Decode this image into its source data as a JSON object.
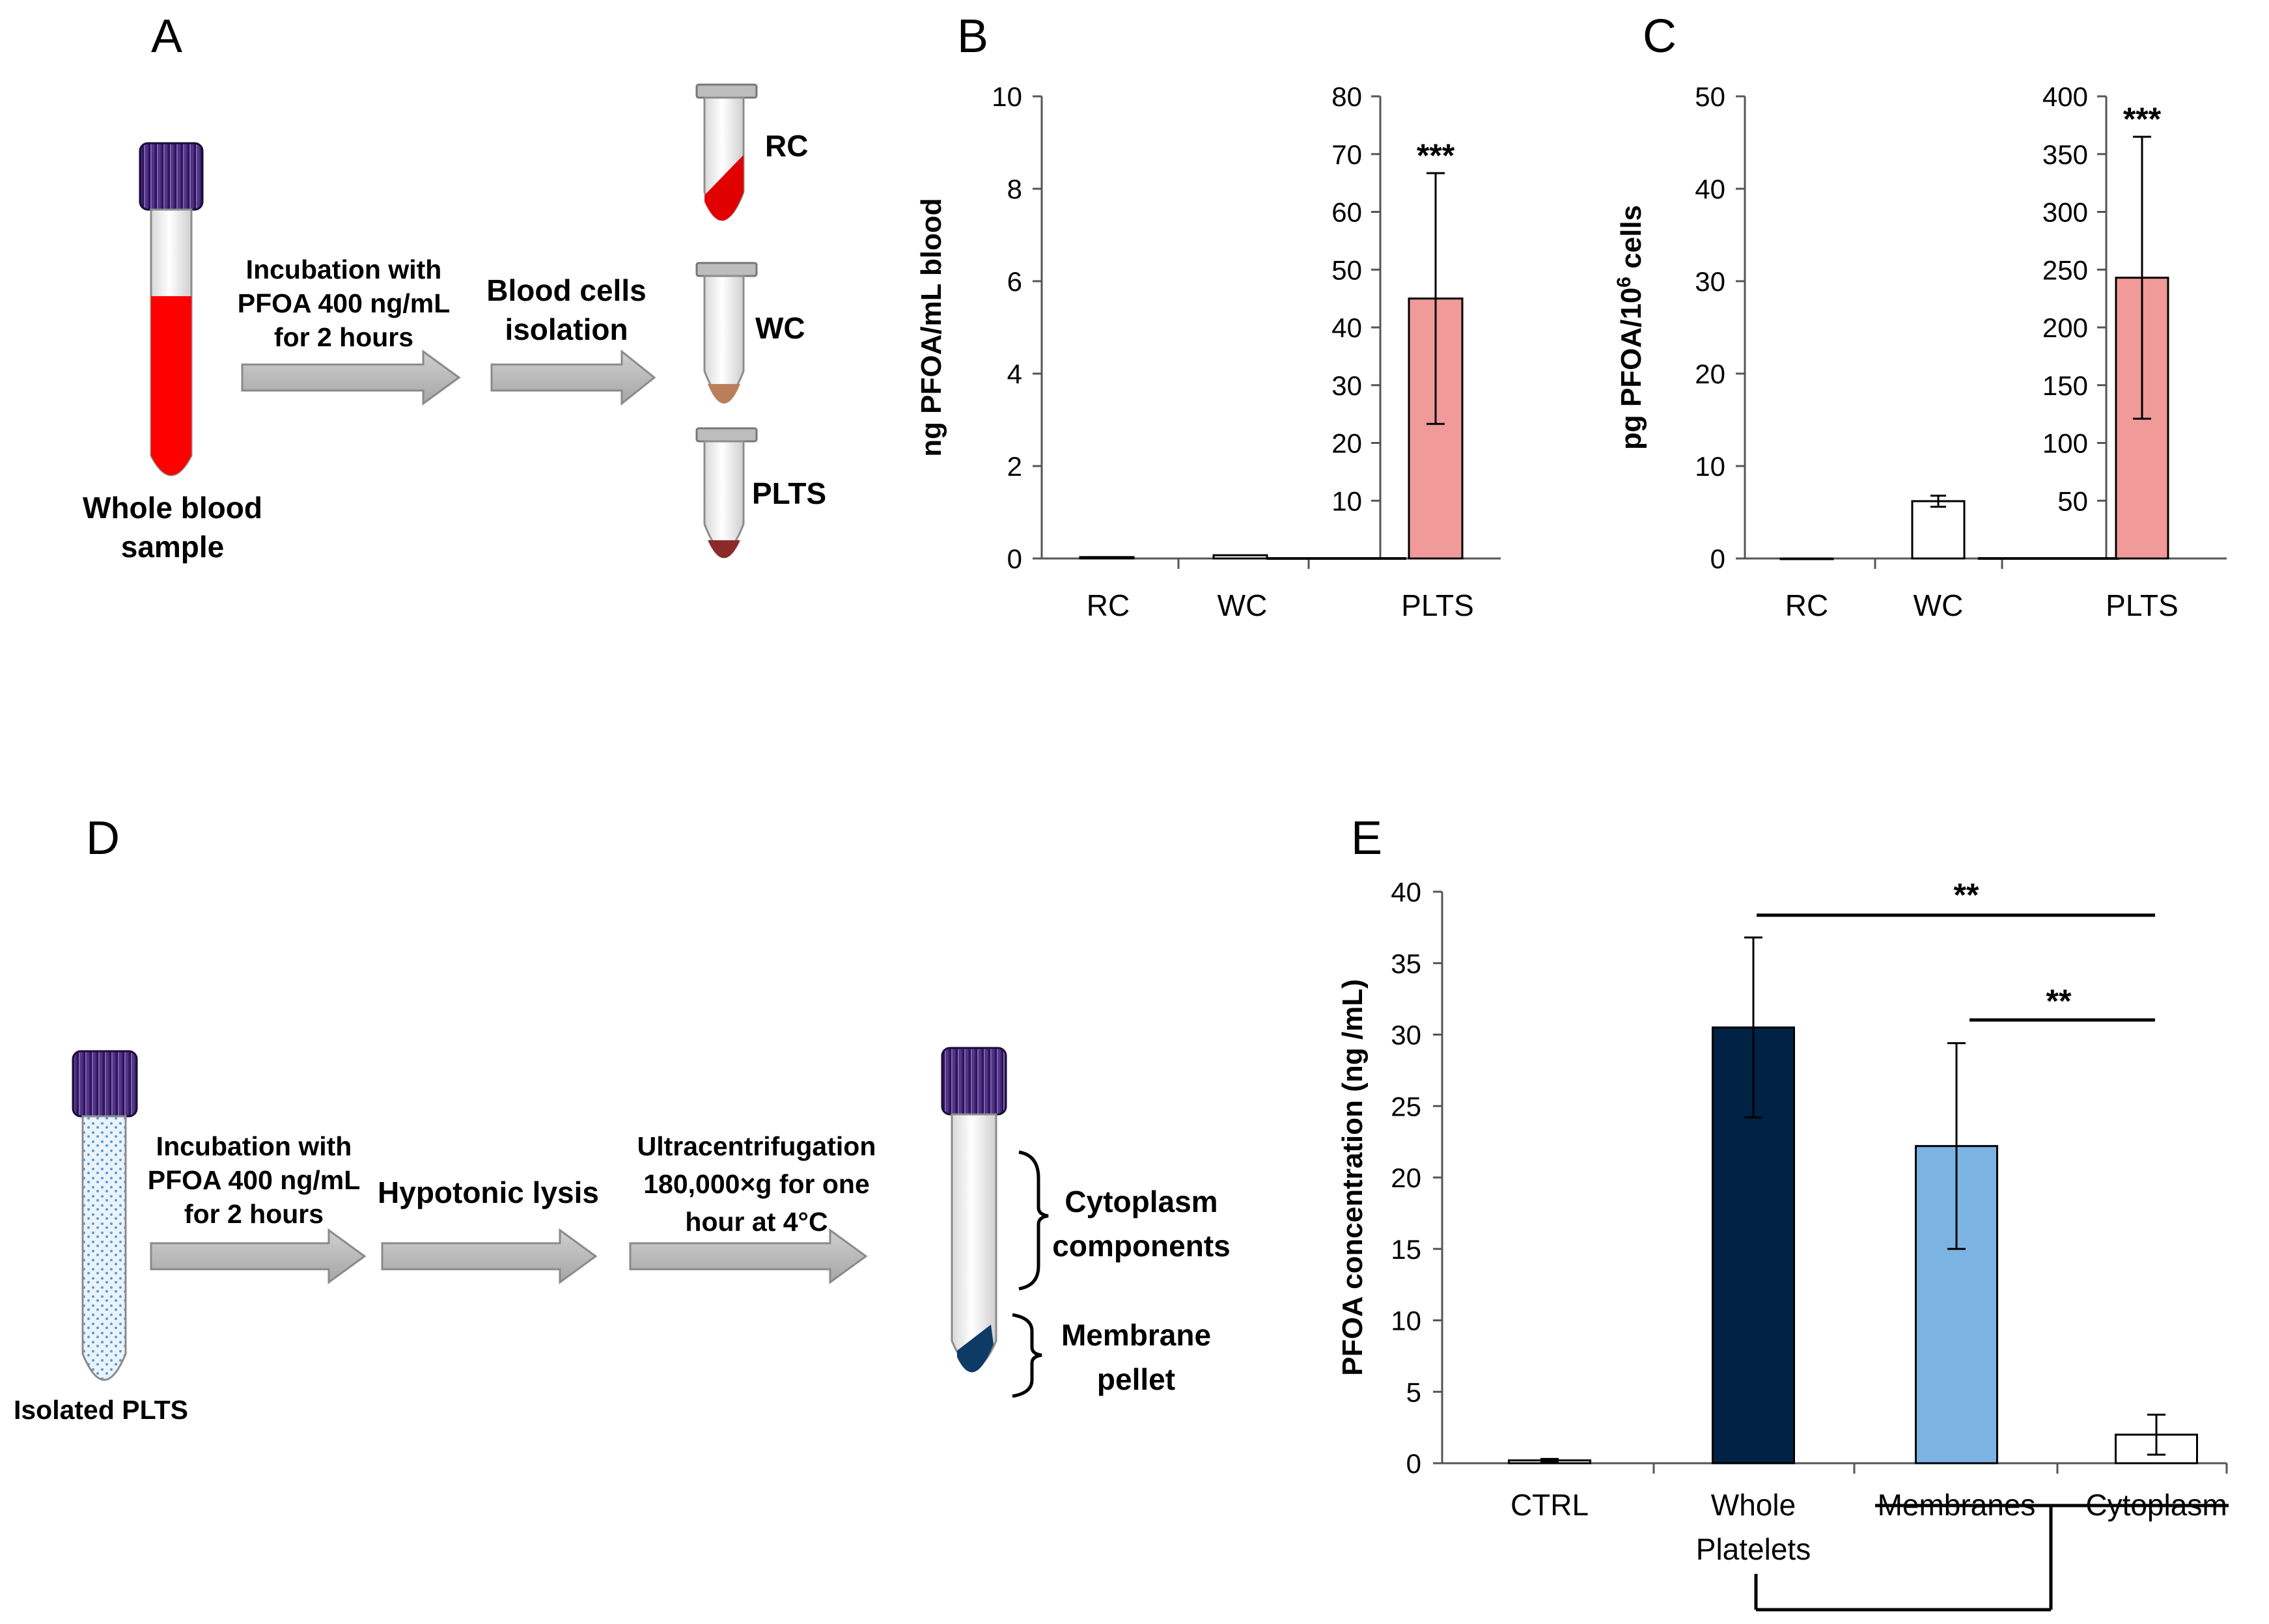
{
  "panels": {
    "a": "A",
    "b": "B",
    "c": "C",
    "d": "D",
    "e": "E"
  },
  "panel_a": {
    "step1_line1": "Incubation with",
    "step1_line2": "PFOA 400 ng/mL",
    "step1_line3": "for 2 hours",
    "step2_line1": "Blood cells",
    "step2_line2": "isolation",
    "source_line1": "Whole blood",
    "source_line2": "sample",
    "tube_labels": [
      "RC",
      "WC",
      "PLTS"
    ]
  },
  "panel_d": {
    "step1_line1": "Incubation with",
    "step1_line2": "PFOA 400 ng/mL",
    "step1_line3": "for 2 hours",
    "step2": "Hypotonic lysis",
    "step3_line1": "Ultracentrifugation",
    "step3_line2": "180,000×g for one",
    "step3_line3": "hour at 4°C",
    "source": "Isolated PLTS",
    "frac1_line1": "Cytoplasm",
    "frac1_line2": "components",
    "frac2_line1": "Membrane",
    "frac2_line2": "pellet"
  },
  "colors": {
    "red_blood": "#ff0000",
    "cap_purple": "#3b1f6b",
    "pink_bar": "#f19a9a",
    "navy_bar": "#002244",
    "light_blue_bar": "#7bb3e3",
    "arrow_gray": "#b5b5b5",
    "platelet_dots": "#5b9bd5",
    "pellet_navy": "#0d3b66"
  },
  "chart_data": [
    {
      "id": "B",
      "type": "bar",
      "ylabel": "ng PFOA/mL blood",
      "categories": [
        "RC",
        "WC",
        "PLTS"
      ],
      "left_axis": {
        "ylim": [
          0,
          10
        ],
        "ticks": [
          "0",
          "2",
          "4",
          "6",
          "8",
          "10"
        ],
        "series": [
          {
            "name": "RC",
            "value": 0.03,
            "error": 0
          },
          {
            "name": "WC",
            "value": 0.07,
            "error": 0
          }
        ]
      },
      "right_axis": {
        "ylim": [
          0,
          80
        ],
        "ticks": [
          "10",
          "20",
          "30",
          "40",
          "50",
          "60",
          "70",
          "80"
        ],
        "series": [
          {
            "name": "PLTS",
            "value": 45,
            "error": 21.7
          }
        ]
      },
      "significance": "***"
    },
    {
      "id": "C",
      "type": "bar",
      "ylabel": "pg PFOA/10",
      "ylabel_sup": "6",
      "ylabel_tail": " cells",
      "categories": [
        "RC",
        "WC",
        "PLTS"
      ],
      "left_axis": {
        "ylim": [
          0,
          50
        ],
        "ticks": [
          "0",
          "10",
          "20",
          "30",
          "40",
          "50"
        ],
        "series": [
          {
            "name": "RC",
            "value": 0,
            "error": 0
          },
          {
            "name": "WC",
            "value": 6.2,
            "error": 0.6
          }
        ]
      },
      "right_axis": {
        "ylim": [
          0,
          400
        ],
        "ticks": [
          "50",
          "100",
          "150",
          "200",
          "250",
          "300",
          "350",
          "400"
        ],
        "series": [
          {
            "name": "PLTS",
            "value": 243,
            "error": 122
          }
        ]
      },
      "significance": "***"
    },
    {
      "id": "E",
      "type": "bar",
      "ylabel": "PFOA concentration (ng /mL)",
      "ylim": [
        0,
        40
      ],
      "ticks": [
        "0",
        "5",
        "10",
        "15",
        "20",
        "25",
        "30",
        "35",
        "40"
      ],
      "categories": [
        "CTRL",
        "Whole Platelets",
        "Membranes",
        "Cytoplasm"
      ],
      "category_lines": [
        [
          "CTRL"
        ],
        [
          "Whole",
          "Platelets"
        ],
        [
          "Membranes"
        ],
        [
          "Cytoplasm"
        ]
      ],
      "values": [
        0.2,
        30.5,
        22.2,
        2.0
      ],
      "errors": [
        0.1,
        6.3,
        7.2,
        1.4
      ],
      "significance": [
        "**",
        "**"
      ]
    }
  ]
}
